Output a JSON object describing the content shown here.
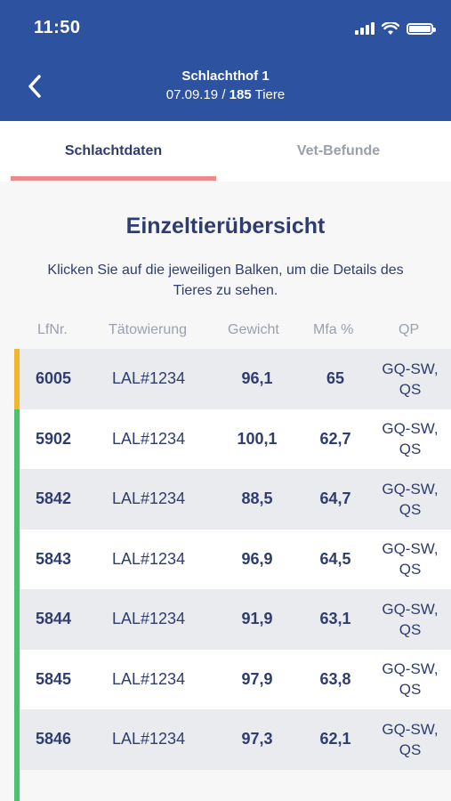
{
  "status_bar": {
    "time": "11:50"
  },
  "header": {
    "title": "Schlachthof 1",
    "date": "07.09.19",
    "separator": " / ",
    "count": "185",
    "count_unit": " Tiere"
  },
  "tabs": [
    {
      "label": "Schlachtdaten",
      "active": true
    },
    {
      "label": "Vet-Befunde",
      "active": false
    }
  ],
  "main": {
    "heading": "Einzeltierübersicht",
    "intro": "Klicken Sie auf die jeweiligen Balken, um die Details des Tieres zu sehen."
  },
  "table": {
    "columns": [
      "LfNr.",
      "Tätowierung",
      "Gewicht",
      "Mfa %",
      "QP"
    ],
    "rows": [
      {
        "lfnr": "6005",
        "tattoo": "LAL#1234",
        "weight": "96,1",
        "mfa": "65",
        "qp": [
          "GQ-SW,",
          "QS"
        ],
        "status_color": "#f2b530"
      },
      {
        "lfnr": "5902",
        "tattoo": "LAL#1234",
        "weight": "100,1",
        "mfa": "62,7",
        "qp": [
          "GQ-SW,",
          "QS"
        ],
        "status_color": "#4bc26f"
      },
      {
        "lfnr": "5842",
        "tattoo": "LAL#1234",
        "weight": "88,5",
        "mfa": "64,7",
        "qp": [
          "GQ-SW,",
          "QS"
        ],
        "status_color": "#4bc26f"
      },
      {
        "lfnr": "5843",
        "tattoo": "LAL#1234",
        "weight": "96,9",
        "mfa": "64,5",
        "qp": [
          "GQ-SW,",
          "QS"
        ],
        "status_color": "#4bc26f"
      },
      {
        "lfnr": "5844",
        "tattoo": "LAL#1234",
        "weight": "91,9",
        "mfa": "63,1",
        "qp": [
          "GQ-SW,",
          "QS"
        ],
        "status_color": "#4bc26f"
      },
      {
        "lfnr": "5845",
        "tattoo": "LAL#1234",
        "weight": "97,9",
        "mfa": "63,8",
        "qp": [
          "GQ-SW,",
          "QS"
        ],
        "status_color": "#4bc26f"
      },
      {
        "lfnr": "5846",
        "tattoo": "LAL#1234",
        "weight": "97,3",
        "mfa": "62,1",
        "qp": [
          "GQ-SW,",
          "QS"
        ],
        "status_color": "#4bc26f"
      }
    ]
  },
  "colors": {
    "header_bg": "#2d52a0",
    "text_primary": "#2f3c6e",
    "text_muted": "#9aa0ac",
    "tab_indicator": "#ef8a8a",
    "status_ok": "#4bc26f",
    "status_warn": "#f2b530"
  }
}
